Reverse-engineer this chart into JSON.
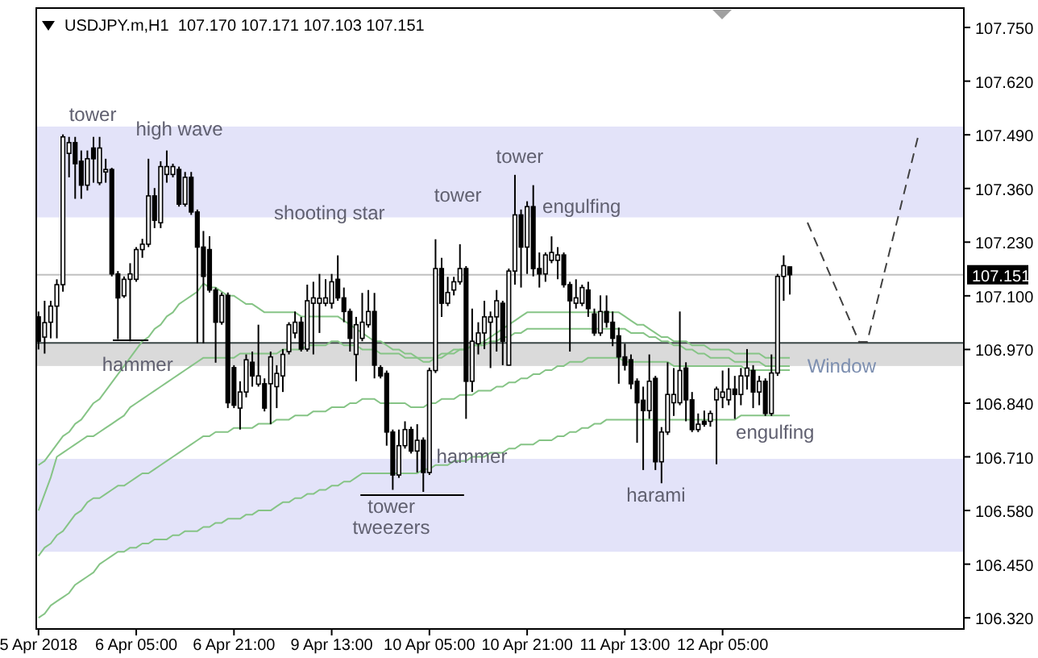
{
  "chart_data": {
    "type": "candlestick",
    "title": "USDJPY.m,H1  107.170 107.171 107.103 107.151",
    "color": "#000000",
    "categories": [
      "5 Apr 2018",
      null,
      null,
      null,
      null,
      null,
      null,
      null,
      null,
      null,
      null,
      null,
      null,
      null,
      null,
      null,
      "6 Apr 05:00",
      null,
      null,
      null,
      null,
      null,
      null,
      null,
      null,
      null,
      null,
      null,
      null,
      null,
      null,
      null,
      "6 Apr 21:00",
      null,
      null,
      null,
      null,
      null,
      null,
      null,
      null,
      null,
      null,
      null,
      null,
      null,
      null,
      null,
      "9 Apr 13:00",
      null,
      null,
      null,
      null,
      null,
      null,
      null,
      null,
      null,
      null,
      null,
      null,
      null,
      null,
      null,
      "10 Apr 05:00",
      null,
      null,
      null,
      null,
      null,
      null,
      null,
      null,
      null,
      null,
      null,
      null,
      null,
      null,
      null,
      "10 Apr 21:00",
      null,
      null,
      null,
      null,
      null,
      null,
      null,
      null,
      null,
      null,
      null,
      null,
      null,
      null,
      null,
      "11 Apr 13:00",
      null,
      null,
      null,
      null,
      null,
      null,
      null,
      null,
      null,
      null,
      null,
      null,
      null,
      null,
      null,
      "12 Apr 05:00",
      null,
      null,
      null,
      null,
      null,
      null,
      null,
      null,
      null,
      null,
      null
    ],
    "ohlc": [
      [
        107.049,
        107.062,
        106.97,
        106.99
      ],
      [
        107.0,
        107.088,
        106.96,
        107.035
      ],
      [
        107.036,
        107.088,
        106.997,
        107.075
      ],
      [
        107.075,
        107.14,
        106.997,
        107.127
      ],
      [
        107.127,
        107.491,
        107.11,
        107.485
      ],
      [
        107.445,
        107.485,
        107.387,
        107.471
      ],
      [
        107.471,
        107.485,
        107.335,
        107.42
      ],
      [
        107.426,
        107.452,
        107.335,
        107.368
      ],
      [
        107.368,
        107.452,
        107.355,
        107.432
      ],
      [
        107.458,
        107.485,
        107.374,
        107.432
      ],
      [
        107.374,
        107.485,
        107.368,
        107.458
      ],
      [
        107.4,
        107.432,
        107.374,
        107.406
      ],
      [
        107.406,
        107.41,
        107.147,
        107.153
      ],
      [
        107.153,
        107.16,
        106.995,
        107.095
      ],
      [
        107.1,
        107.147,
        107.095,
        107.14
      ],
      [
        107.14,
        107.179,
        106.99,
        107.153
      ],
      [
        107.14,
        107.218,
        107.134,
        107.212
      ],
      [
        107.212,
        107.238,
        107.192,
        107.225
      ],
      [
        107.225,
        107.432,
        107.218,
        107.342
      ],
      [
        107.342,
        107.361,
        107.264,
        107.283
      ],
      [
        107.277,
        107.426,
        107.264,
        107.413
      ],
      [
        107.394,
        107.452,
        107.374,
        107.413
      ],
      [
        107.394,
        107.42,
        107.387,
        107.413
      ],
      [
        107.406,
        107.413,
        107.316,
        107.322
      ],
      [
        107.322,
        107.4,
        107.316,
        107.387
      ],
      [
        107.387,
        107.4,
        107.296,
        107.303
      ],
      [
        107.303,
        107.309,
        106.985,
        107.218
      ],
      [
        107.218,
        107.257,
        106.985,
        107.147
      ],
      [
        107.212,
        107.244,
        107.108,
        107.114
      ],
      [
        107.114,
        107.12,
        106.938,
        107.036
      ],
      [
        107.036,
        107.108,
        107.03,
        107.101
      ],
      [
        107.101,
        107.108,
        106.828,
        106.841
      ],
      [
        106.926,
        106.932,
        106.828,
        106.835
      ],
      [
        106.828,
        106.893,
        106.776,
        106.867
      ],
      [
        106.867,
        106.958,
        106.854,
        106.945
      ],
      [
        106.939,
        106.965,
        106.88,
        106.906
      ],
      [
        106.886,
        107.03,
        106.88,
        106.906
      ],
      [
        106.887,
        106.9,
        106.82,
        106.828
      ],
      [
        106.887,
        106.965,
        106.789,
        106.952
      ],
      [
        106.88,
        106.932,
        106.828,
        106.912
      ],
      [
        106.906,
        106.971,
        106.867,
        106.958
      ],
      [
        106.965,
        107.036,
        106.958,
        107.03
      ],
      [
        107.01,
        107.062,
        106.997,
        107.036
      ],
      [
        107.036,
        107.049,
        106.965,
        106.971
      ],
      [
        106.971,
        107.127,
        106.965,
        107.088
      ],
      [
        107.082,
        107.134,
        106.958,
        107.095
      ],
      [
        107.082,
        107.153,
        107.01,
        107.094
      ],
      [
        107.082,
        107.14,
        107.075,
        107.095
      ],
      [
        107.082,
        107.153,
        107.069,
        107.134
      ],
      [
        107.14,
        107.198,
        107.088,
        107.095
      ],
      [
        107.095,
        107.12,
        107.036,
        107.062
      ],
      [
        107.062,
        107.069,
        106.965,
        106.997
      ],
      [
        106.958,
        107.049,
        106.893,
        107.03
      ],
      [
        106.997,
        107.107,
        106.99,
        107.036
      ],
      [
        107.03,
        107.114,
        107.023,
        107.062
      ],
      [
        107.062,
        107.107,
        106.9,
        106.932
      ],
      [
        106.926,
        106.932,
        106.9,
        106.906
      ],
      [
        106.912,
        106.919,
        106.737,
        106.77
      ],
      [
        106.77,
        106.776,
        106.63,
        106.666
      ],
      [
        106.666,
        106.776,
        106.659,
        106.737
      ],
      [
        106.737,
        106.796,
        106.73,
        106.776
      ],
      [
        106.776,
        106.783,
        106.718,
        106.724
      ],
      [
        106.724,
        106.789,
        106.672,
        106.75
      ],
      [
        106.75,
        106.757,
        106.625,
        106.672
      ],
      [
        106.672,
        106.926,
        106.666,
        106.919
      ],
      [
        106.919,
        107.237,
        106.913,
        107.166
      ],
      [
        107.166,
        107.192,
        107.049,
        107.082
      ],
      [
        107.082,
        107.146,
        107.075,
        107.108
      ],
      [
        107.114,
        107.146,
        107.101,
        107.134
      ],
      [
        107.134,
        107.225,
        107.127,
        107.166
      ],
      [
        107.166,
        107.172,
        106.802,
        106.893
      ],
      [
        106.893,
        107.069,
        106.867,
        106.99
      ],
      [
        106.984,
        107.036,
        106.958,
        107.01
      ],
      [
        107.01,
        107.088,
        106.971,
        107.049
      ],
      [
        107.036,
        107.062,
        106.925,
        107.049
      ],
      [
        107.049,
        107.114,
        106.965,
        107.088
      ],
      [
        107.082,
        107.088,
        106.932,
        106.99
      ],
      [
        106.932,
        107.166,
        106.932,
        107.16
      ],
      [
        107.16,
        107.393,
        107.127,
        107.296
      ],
      [
        107.296,
        107.309,
        107.12,
        107.218
      ],
      [
        107.218,
        107.329,
        107.153,
        107.316
      ],
      [
        107.316,
        107.368,
        107.147,
        107.166
      ],
      [
        107.166,
        107.205,
        107.12,
        107.153
      ],
      [
        107.153,
        107.205,
        107.134,
        107.199
      ],
      [
        107.186,
        107.244,
        107.179,
        107.205
      ],
      [
        107.186,
        107.218,
        107.14,
        107.199
      ],
      [
        107.199,
        107.205,
        107.12,
        107.127
      ],
      [
        107.127,
        107.134,
        106.965,
        107.088
      ],
      [
        107.082,
        107.14,
        107.069,
        107.095
      ],
      [
        107.082,
        107.127,
        107.075,
        107.12
      ],
      [
        107.114,
        107.134,
        107.049,
        107.069
      ],
      [
        107.056,
        107.069,
        107.003,
        107.01
      ],
      [
        107.01,
        107.101,
        107.003,
        107.062
      ],
      [
        107.062,
        107.101,
        107.023,
        107.036
      ],
      [
        107.036,
        107.062,
        106.978,
        106.997
      ],
      [
        107.003,
        107.023,
        106.887,
        106.952
      ],
      [
        106.952,
        106.984,
        106.919,
        106.932
      ],
      [
        106.945,
        106.958,
        106.874,
        106.887
      ],
      [
        106.893,
        106.9,
        106.744,
        106.841
      ],
      [
        106.847,
        106.88,
        106.678,
        106.822
      ],
      [
        106.822,
        106.958,
        106.802,
        106.893
      ],
      [
        106.9,
        106.906,
        106.678,
        106.698
      ],
      [
        106.698,
        106.782,
        106.646,
        106.77
      ],
      [
        106.77,
        106.939,
        106.763,
        106.861
      ],
      [
        106.841,
        106.925,
        106.809,
        106.861
      ],
      [
        106.841,
        107.062,
        106.835,
        106.919
      ],
      [
        106.925,
        106.939,
        106.796,
        106.848
      ],
      [
        106.848,
        106.867,
        106.77,
        106.776
      ],
      [
        106.776,
        106.815,
        106.77,
        106.789
      ],
      [
        106.796,
        106.822,
        106.783,
        106.789
      ],
      [
        106.796,
        106.822,
        106.783,
        106.815
      ],
      [
        106.848,
        106.88,
        106.692,
        106.874
      ],
      [
        106.854,
        106.919,
        106.828,
        106.867
      ],
      [
        106.848,
        106.925,
        106.835,
        106.874
      ],
      [
        106.874,
        106.906,
        106.802,
        106.861
      ],
      [
        106.861,
        106.925,
        106.835,
        106.906
      ],
      [
        106.906,
        106.971,
        106.873,
        106.925
      ],
      [
        106.919,
        106.932,
        106.828,
        106.867
      ],
      [
        106.867,
        106.906,
        106.835,
        106.893
      ],
      [
        106.893,
        106.9,
        106.809,
        106.815
      ],
      [
        106.815,
        106.958,
        106.809,
        106.913
      ],
      [
        106.913,
        107.153,
        106.906,
        107.147
      ],
      [
        107.147,
        107.198,
        107.088,
        107.173
      ],
      [
        107.17,
        107.171,
        107.103,
        107.151
      ]
    ],
    "series": [
      {
        "type": "line",
        "color": "#86c486",
        "values": [
          106.69,
          106.7,
          106.72,
          106.74,
          106.76,
          106.77,
          106.79,
          106.8,
          106.82,
          106.84,
          106.85,
          106.87,
          106.89,
          106.91,
          106.93,
          106.95,
          106.97,
          106.99,
          107.0,
          107.02,
          107.03,
          107.05,
          107.06,
          107.08,
          107.09,
          107.1,
          107.11,
          107.13,
          107.12,
          107.12,
          107.11,
          107.1,
          107.1,
          107.09,
          107.08,
          107.08,
          107.07,
          107.06,
          107.06,
          107.06,
          107.06,
          107.06,
          107.06,
          107.05,
          107.05,
          107.05,
          107.05,
          107.05,
          107.05,
          107.05,
          107.04,
          107.03,
          107.02,
          107.01,
          107.0,
          106.99,
          106.99,
          106.98,
          106.97,
          106.97,
          106.96,
          106.96,
          106.95,
          106.94,
          106.94,
          106.95,
          106.95,
          106.96,
          106.96,
          106.97,
          106.97,
          106.98,
          106.98,
          106.99,
          107.0,
          107.01,
          107.02,
          107.03,
          107.04,
          107.05,
          107.06,
          107.06,
          107.06,
          107.06,
          107.06,
          107.06,
          107.06,
          107.06,
          107.06,
          107.06,
          107.06,
          107.06,
          107.06,
          107.06,
          107.06,
          107.06,
          107.05,
          107.04,
          107.03,
          107.03,
          107.02,
          107.01,
          107.0,
          107.0,
          106.99,
          106.99,
          106.99,
          106.98,
          106.98,
          106.98,
          106.97,
          106.97,
          106.97,
          106.97,
          106.96,
          106.96,
          106.96,
          106.96,
          106.96,
          106.95,
          106.95,
          106.95,
          106.95,
          106.95
        ]
      },
      {
        "type": "line",
        "color": "#86c486",
        "values": [
          106.58,
          106.62,
          106.66,
          106.71,
          106.72,
          106.73,
          106.74,
          106.75,
          106.76,
          106.76,
          106.77,
          106.78,
          106.79,
          106.8,
          106.81,
          106.83,
          106.84,
          106.85,
          106.86,
          106.87,
          106.88,
          106.89,
          106.9,
          106.91,
          106.92,
          106.93,
          106.94,
          106.95,
          106.95,
          106.95,
          106.95,
          106.95,
          106.95,
          106.96,
          106.96,
          106.96,
          106.96,
          106.96,
          106.96,
          106.96,
          106.97,
          106.97,
          106.97,
          106.97,
          106.98,
          106.98,
          106.98,
          106.98,
          106.99,
          106.99,
          106.98,
          106.98,
          106.98,
          106.97,
          106.97,
          106.97,
          106.96,
          106.96,
          106.96,
          106.96,
          106.95,
          106.95,
          106.95,
          106.95,
          106.95,
          106.95,
          106.96,
          106.96,
          106.97,
          106.97,
          106.97,
          106.98,
          106.98,
          106.98,
          106.99,
          106.99,
          107.0,
          107.0,
          107.01,
          107.01,
          107.02,
          107.02,
          107.02,
          107.02,
          107.02,
          107.02,
          107.02,
          107.02,
          107.02,
          107.02,
          107.02,
          107.02,
          107.02,
          107.02,
          107.02,
          107.02,
          107.02,
          107.01,
          107.01,
          107.01,
          107.0,
          107.0,
          106.99,
          106.99,
          106.98,
          106.98,
          106.97,
          106.97,
          106.96,
          106.96,
          106.95,
          106.95,
          106.95,
          106.95,
          106.94,
          106.94,
          106.94,
          106.94,
          106.94,
          106.93,
          106.93,
          106.93,
          106.93,
          106.93
        ]
      },
      {
        "type": "line",
        "color": "#86c486",
        "values": [
          106.47,
          106.49,
          106.5,
          106.52,
          106.53,
          106.55,
          106.57,
          106.58,
          106.6,
          106.61,
          106.61,
          106.62,
          106.63,
          106.64,
          106.64,
          106.65,
          106.66,
          106.67,
          106.67,
          106.68,
          106.69,
          106.7,
          106.71,
          106.72,
          106.73,
          106.74,
          106.75,
          106.76,
          106.76,
          106.77,
          106.77,
          106.77,
          106.78,
          106.78,
          106.78,
          106.78,
          106.79,
          106.79,
          106.79,
          106.8,
          106.8,
          106.8,
          106.81,
          106.81,
          106.81,
          106.82,
          106.82,
          106.82,
          106.83,
          106.83,
          106.83,
          106.84,
          106.84,
          106.85,
          106.85,
          106.85,
          106.84,
          106.84,
          106.84,
          106.84,
          106.84,
          106.83,
          106.83,
          106.83,
          106.84,
          106.84,
          106.85,
          106.85,
          106.85,
          106.86,
          106.86,
          106.86,
          106.87,
          106.87,
          106.87,
          106.88,
          106.88,
          106.89,
          106.89,
          106.9,
          106.9,
          106.91,
          106.91,
          106.92,
          106.92,
          106.93,
          106.93,
          106.94,
          106.94,
          106.94,
          106.95,
          106.95,
          106.95,
          106.95,
          106.95,
          106.95,
          106.94,
          106.94,
          106.94,
          106.94,
          106.94,
          106.94,
          106.94,
          106.94,
          106.93,
          106.93,
          106.93,
          106.93,
          106.93,
          106.93,
          106.93,
          106.93,
          106.93,
          106.93,
          106.93,
          106.93,
          106.92,
          106.92,
          106.92,
          106.92,
          106.92,
          106.92,
          106.92,
          106.92
        ]
      },
      {
        "type": "line",
        "color": "#86c486",
        "values": [
          106.32,
          106.33,
          106.35,
          106.36,
          106.37,
          106.38,
          106.4,
          106.41,
          106.42,
          106.43,
          106.45,
          106.46,
          106.47,
          106.48,
          106.48,
          106.49,
          106.49,
          106.5,
          106.5,
          106.51,
          106.51,
          106.51,
          106.52,
          106.52,
          106.53,
          106.53,
          106.53,
          106.54,
          106.54,
          106.55,
          106.55,
          106.56,
          106.56,
          106.56,
          106.57,
          106.57,
          106.58,
          106.58,
          106.58,
          106.59,
          106.6,
          106.6,
          106.61,
          106.61,
          106.62,
          106.62,
          106.63,
          106.63,
          106.64,
          106.64,
          106.65,
          106.65,
          106.66,
          106.67,
          106.67,
          106.67,
          106.67,
          106.67,
          106.67,
          106.67,
          106.67,
          106.67,
          106.67,
          106.68,
          106.68,
          106.69,
          106.69,
          106.69,
          106.7,
          106.7,
          106.7,
          106.71,
          106.71,
          106.71,
          106.72,
          106.72,
          106.72,
          106.73,
          106.73,
          106.74,
          106.74,
          106.74,
          106.75,
          106.75,
          106.75,
          106.76,
          106.76,
          106.77,
          106.77,
          106.78,
          106.78,
          106.79,
          106.79,
          106.8,
          106.8,
          106.8,
          106.8,
          106.8,
          106.8,
          106.8,
          106.8,
          106.8,
          106.8,
          106.8,
          106.8,
          106.8,
          106.8,
          106.8,
          106.8,
          106.8,
          106.8,
          106.8,
          106.8,
          106.8,
          106.8,
          106.81,
          106.81,
          106.81,
          106.81,
          106.81,
          106.81,
          106.81,
          106.81,
          106.81
        ]
      }
    ],
    "ylim": [
      106.293,
      107.797
    ],
    "yticks": [
      {
        "value": 107.75,
        "label": "107.750"
      },
      {
        "value": 107.62,
        "label": "107.620"
      },
      {
        "value": 107.49,
        "label": "107.490"
      },
      {
        "value": 107.36,
        "label": "107.360"
      },
      {
        "value": 107.23,
        "label": "107.230"
      },
      {
        "value": 107.1,
        "label": "107.100"
      },
      {
        "value": 106.97,
        "label": "106.970"
      },
      {
        "value": 106.84,
        "label": "106.840"
      },
      {
        "value": 106.71,
        "label": "106.710"
      },
      {
        "value": 106.58,
        "label": "106.580"
      },
      {
        "value": 106.45,
        "label": "106.450"
      },
      {
        "value": 106.32,
        "label": "106.320"
      }
    ],
    "bands": [
      {
        "axis": "y",
        "from": 107.29,
        "to": 107.51,
        "color": "#e3e3f9"
      },
      {
        "axis": "y",
        "from": 106.48,
        "to": 106.705,
        "color": "#e3e3f9"
      },
      {
        "axis": "y",
        "from": 106.93,
        "to": 106.986,
        "color": "#dadada"
      }
    ],
    "ref_lines": [
      {
        "axis": "y",
        "value": 106.986,
        "color": "#3a4646"
      },
      {
        "axis": "y",
        "value": 107.151,
        "label": "107.151",
        "color": "#c0c0c0"
      }
    ],
    "annotations": [
      "tower",
      "high wave",
      "shooting star",
      "tower",
      "tower",
      "engulfing",
      "hammer",
      "tower",
      "tweezers",
      "hammer",
      "harami",
      "engulfing",
      "Window"
    ]
  }
}
